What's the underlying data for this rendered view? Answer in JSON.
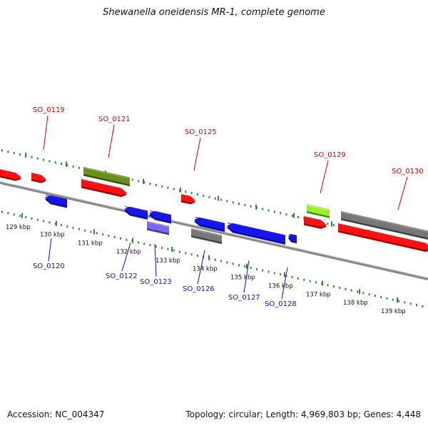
{
  "title": "Shewanella oneidensis MR-1, complete genome",
  "footer": {
    "accession": "Accession: NC_004347",
    "stats": "Topology: circular; Length: 4,969,803 bp; Genes: 4,448"
  },
  "colors": {
    "ruler": "#2f8a2f",
    "backbone": "#888888",
    "forward_label": "#d40000",
    "reverse_label": "#1010c0",
    "red_gene": "#ff1111",
    "blue_gene": "#1515ee",
    "olive_gene": "#6b8e23",
    "lime_gene": "#99ee33",
    "lavender_gene": "#7b68ee",
    "gray_gene": "#777777"
  },
  "kbp_ticks": [
    "129 kbp",
    "130 kbp",
    "131 kbp",
    "132 kbp",
    "133 kbp",
    "134 kbp",
    "135 kbp",
    "136 kbp",
    "137 kbp",
    "138 kbp",
    "139 kbp"
  ],
  "forward_labels": [
    "SO_0119",
    "SO_0121",
    "SO_0125",
    "SO_0129",
    "SO_0130"
  ],
  "reverse_labels": [
    "SO_0120",
    "SO_0122",
    "SO_0123",
    "SO_0126",
    "SO_0127",
    "SO_0128"
  ]
}
